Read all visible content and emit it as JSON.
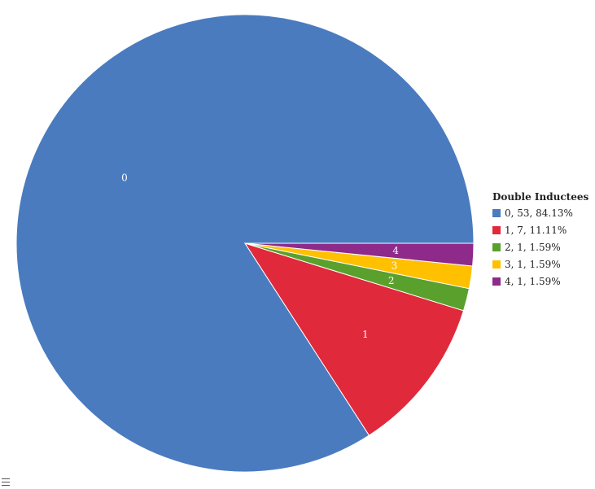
{
  "chart_data": {
    "type": "pie",
    "legend_title": "Double Inductees",
    "legend_position": "right",
    "slices": [
      {
        "label": "0",
        "legend": "0, 53, 84.13%",
        "value": 53,
        "percent": 84.13,
        "color": "#4a7bbf"
      },
      {
        "label": "1",
        "legend": "1, 7, 11.11%",
        "value": 7,
        "percent": 11.11,
        "color": "#e0293a"
      },
      {
        "label": "2",
        "legend": "2, 1, 1.59%",
        "value": 1,
        "percent": 1.59,
        "color": "#5aa02c"
      },
      {
        "label": "3",
        "legend": "3, 1, 1.59%",
        "value": 1,
        "percent": 1.59,
        "color": "#ffc000"
      },
      {
        "label": "4",
        "legend": "4, 1, 1.59%",
        "value": 1,
        "percent": 1.59,
        "color": "#8e2a8a"
      }
    ]
  },
  "menu": {
    "icon": "hamburger-menu-icon"
  }
}
